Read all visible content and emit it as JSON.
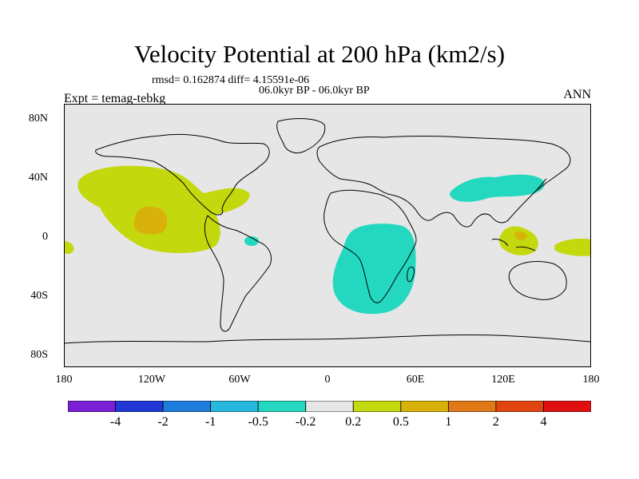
{
  "title": "Velocity Potential at 200 hPa (km2/s)",
  "stats": "rmsd= 0.162874 diff= 4.15591e-06",
  "experiments": "06.0kyr BP - 06.0kyr BP",
  "expt_label": "Expt = temag-tebkg",
  "season": "ANN",
  "lat_labels": [
    "80N",
    "40N",
    "0",
    "40S",
    "80S"
  ],
  "lon_labels": [
    "180",
    "120W",
    "60W",
    "0",
    "60E",
    "120E",
    "180"
  ],
  "colorbar": {
    "colors": [
      "#7a1fd6",
      "#2238d6",
      "#1e7ddc",
      "#27b8e0",
      "#24d8c0",
      "#e6e6e6",
      "#c4d80e",
      "#d8b20a",
      "#e07818",
      "#e04510",
      "#e01010"
    ],
    "labels": [
      "-4",
      "-2",
      "-1",
      "-0.5",
      "-0.2",
      "0.2",
      "0.5",
      "1",
      "2",
      "4"
    ]
  },
  "chart_data": {
    "type": "contour-map",
    "projection": "cylindrical equidistant",
    "lon_range": [
      -180,
      180
    ],
    "lat_range": [
      -90,
      90
    ],
    "background_value_range": [
      -0.2,
      0.2
    ],
    "regions": [
      {
        "name": "E Pacific / Mexico",
        "level": "0.2 to 0.5",
        "color": "#c4d80e"
      },
      {
        "name": "E Pacific core",
        "level": "0.5 to 1",
        "color": "#d8b20a"
      },
      {
        "name": "Maritime Continent",
        "level": "0.2 to 0.5",
        "color": "#c4d80e"
      },
      {
        "name": "E Asia",
        "level": "-0.5 to -0.2",
        "color": "#24d8c0"
      },
      {
        "name": "S Africa / Indian Ocean",
        "level": "-0.5 to -0.2",
        "color": "#24d8c0"
      }
    ]
  }
}
